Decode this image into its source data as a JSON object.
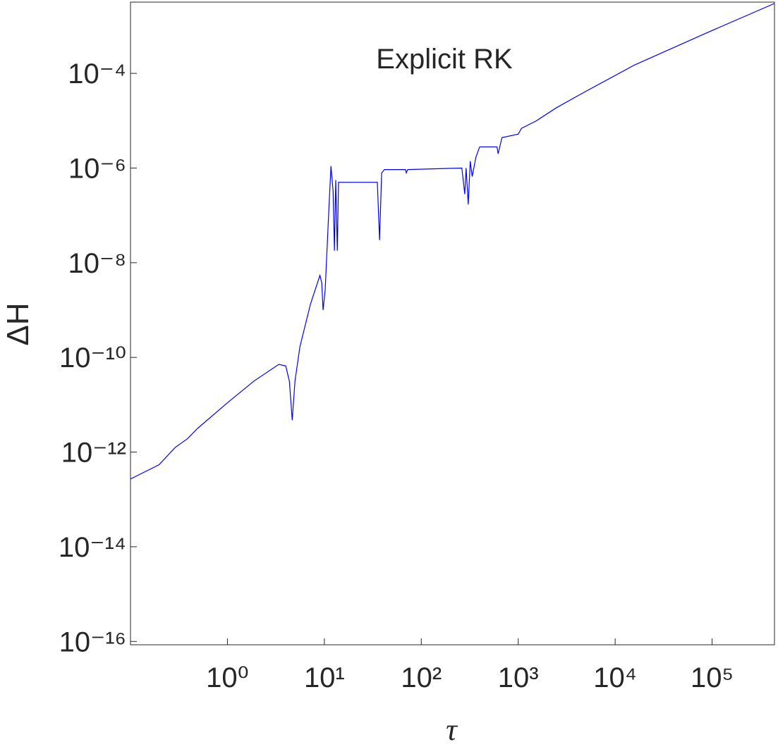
{
  "chart_data": {
    "type": "line",
    "annotation": "Explicit RK",
    "x_label": "τ",
    "y_label": "ΔH",
    "log_x": true,
    "log_y": true,
    "color": "#0000ff",
    "xlim": [
      0.1,
      440000
    ],
    "ylim": [
      8.5e-17,
      0.0032
    ],
    "xticks": [
      {
        "value": 1,
        "label": "10⁰"
      },
      {
        "value": 10,
        "label": "10¹"
      },
      {
        "value": 100,
        "label": "10²"
      },
      {
        "value": 1000,
        "label": "10³"
      },
      {
        "value": 10000,
        "label": "10⁴"
      },
      {
        "value": 100000,
        "label": "10⁵"
      }
    ],
    "yticks": [
      {
        "value": 1e-16,
        "label": "10⁻¹⁶"
      },
      {
        "value": 1e-14,
        "label": "10⁻¹⁴"
      },
      {
        "value": 1e-12,
        "label": "10⁻¹²"
      },
      {
        "value": 1e-10,
        "label": "10⁻¹⁰"
      },
      {
        "value": 1e-08,
        "label": "10⁻⁸"
      },
      {
        "value": 1e-06,
        "label": "10⁻⁶"
      },
      {
        "value": 0.0001,
        "label": "10⁻⁴"
      }
    ],
    "x": [
      0.1,
      0.197,
      0.29,
      0.385,
      0.495,
      1,
      1.89,
      3.39,
      4.0,
      4.36,
      4.66,
      4.98,
      5.6,
      7.2,
      9.0,
      9.4,
      9.7,
      10.2,
      11.1,
      11.7,
      12.3,
      12.7,
      13.1,
      13.6,
      14.0,
      35.2,
      37.1,
      39,
      41.7,
      68.8,
      70,
      72.5,
      262,
      281,
      290,
      305,
      320,
      335,
      366,
      400,
      604,
      620,
      680,
      1000,
      1080,
      1520,
      2500,
      4900,
      15800,
      87000,
      440000
    ],
    "values": [
      2.7e-13,
      5.4e-13,
      1.26e-12,
      1.9e-12,
      3.2e-12,
      1.1e-11,
      3.2e-11,
      7.1e-11,
      6.6e-11,
      3.1e-11,
      4.7e-12,
      3.2e-11,
      1.7e-10,
      1.35e-09,
      5.4e-09,
      3.8e-09,
      1e-09,
      2.7e-09,
      1.2e-07,
      1.1e-06,
      3.3e-07,
      1.8e-08,
      5.6e-07,
      1.8e-08,
      5e-07,
      5e-07,
      3e-08,
      7.9e-07,
      9.3e-07,
      9.3e-07,
      7.9e-07,
      9.3e-07,
      1e-06,
      2.8e-07,
      1e-06,
      1.7e-07,
      1.4e-06,
      6.6e-07,
      1.7e-06,
      2.8e-06,
      2.8e-06,
      2e-06,
      4.4e-06,
      5.2e-06,
      6.9e-06,
      9.8e-06,
      1.9e-05,
      4.1e-05,
      0.00015,
      0.00071,
      0.003
    ]
  }
}
